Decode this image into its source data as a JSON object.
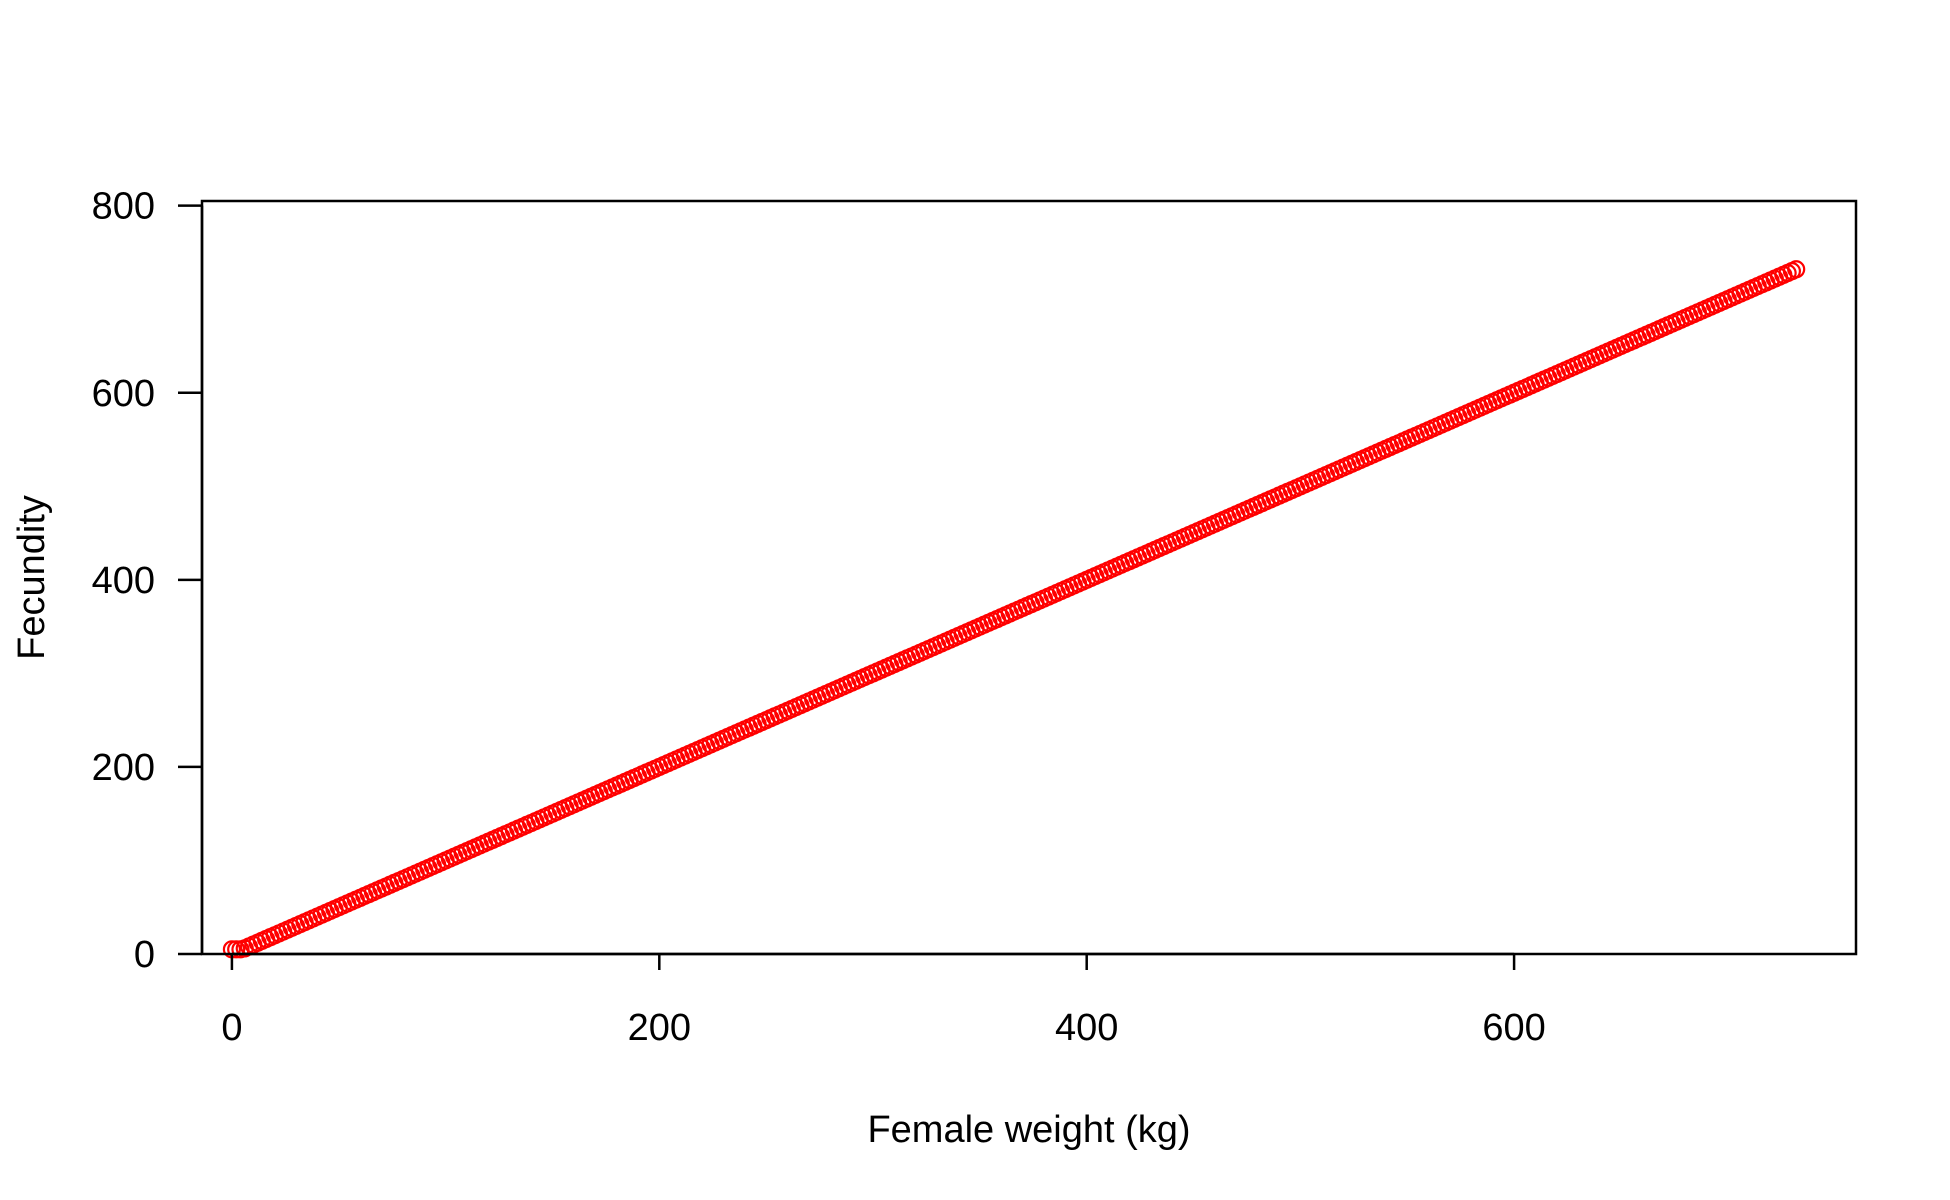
{
  "chart_data": {
    "type": "scatter",
    "title": "",
    "xlabel": "Female weight (kg)",
    "ylabel": "Fecundity",
    "xlim": [
      -14,
      760
    ],
    "ylim": [
      0,
      805
    ],
    "xticks": [
      0,
      200,
      400,
      600
    ],
    "yticks": [
      0,
      200,
      400,
      600,
      800
    ],
    "grid": false,
    "legend": "none",
    "point_style": "open-circle",
    "colors": {
      "points": "#ff0000",
      "axes": "#000000",
      "background": "#ffffff"
    },
    "series": [
      {
        "x_start": 0,
        "x_end": 732,
        "x_step": 2,
        "slope": 1.0,
        "intercept": 0,
        "min_y": 5
      }
    ]
  }
}
